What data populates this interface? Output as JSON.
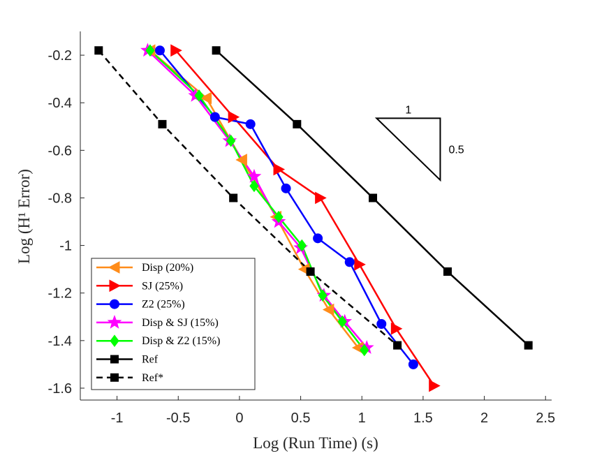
{
  "chart_data": {
    "type": "line",
    "xlabel": "Log (Run Time)  (s)",
    "ylabel": "Log (H¹ Error)",
    "xlim": [
      -1.3,
      2.55
    ],
    "ylim": [
      -1.65,
      -0.1
    ],
    "xticks": [
      -1,
      -0.5,
      0,
      0.5,
      1,
      1.5,
      2,
      2.5
    ],
    "xtick_labels": [
      "-1",
      "-0.5",
      "0",
      "0.5",
      "1",
      "1.5",
      "2",
      "2.5"
    ],
    "yticks": [
      -1.6,
      -1.4,
      -1.2,
      -1,
      -0.8,
      -0.6,
      -0.4,
      -0.2
    ],
    "ytick_labels": [
      "-1.6",
      "-1.4",
      "-1.2",
      "-1",
      "-0.8",
      "-0.6",
      "-0.4",
      "-0.2"
    ],
    "legend_location": "bottom-left",
    "series": [
      {
        "name": "Disp (20%)",
        "color": "#ff8c1a",
        "marker": "triangle-left",
        "dash": "solid",
        "x": [
          -0.73,
          -0.27,
          0.02,
          0.3,
          0.53,
          0.73,
          0.97
        ],
        "y": [
          -0.18,
          -0.38,
          -0.64,
          -0.88,
          -1.1,
          -1.27,
          -1.43
        ]
      },
      {
        "name": "SJ (25%)",
        "color": "#ff0000",
        "marker": "triangle-right",
        "dash": "solid",
        "x": [
          -0.52,
          -0.05,
          0.32,
          0.66,
          0.98,
          1.28,
          1.59
        ],
        "y": [
          -0.18,
          -0.46,
          -0.68,
          -0.8,
          -1.08,
          -1.35,
          -1.59
        ]
      },
      {
        "name": "Z2 (25%)",
        "color": "#0000ff",
        "marker": "circle",
        "dash": "solid",
        "x": [
          -0.65,
          -0.2,
          0.09,
          0.38,
          0.64,
          0.9,
          1.16,
          1.42
        ],
        "y": [
          -0.18,
          -0.46,
          -0.49,
          -0.76,
          -0.97,
          -1.07,
          -1.33,
          -1.5
        ]
      },
      {
        "name": "Disp & SJ (15%)",
        "color": "#ff00ff",
        "marker": "star",
        "dash": "solid",
        "x": [
          -0.75,
          -0.36,
          -0.08,
          0.12,
          0.32,
          0.5,
          0.69,
          0.86,
          1.04
        ],
        "y": [
          -0.18,
          -0.37,
          -0.56,
          -0.71,
          -0.9,
          -1.01,
          -1.21,
          -1.32,
          -1.43
        ]
      },
      {
        "name": "Disp & Z2 (15%)",
        "color": "#00ff00",
        "marker": "diamond",
        "dash": "solid",
        "x": [
          -0.73,
          -0.33,
          -0.07,
          0.12,
          0.32,
          0.51,
          0.68,
          0.84,
          1.02
        ],
        "y": [
          -0.18,
          -0.37,
          -0.56,
          -0.75,
          -0.88,
          -1.0,
          -1.21,
          -1.32,
          -1.44
        ]
      },
      {
        "name": "Ref",
        "color": "#000000",
        "marker": "square",
        "dash": "solid",
        "x": [
          -0.19,
          0.47,
          1.09,
          1.7,
          2.36
        ],
        "y": [
          -0.18,
          -0.49,
          -0.8,
          -1.11,
          -1.42
        ]
      },
      {
        "name": "Ref*",
        "color": "#000000",
        "marker": "square",
        "dash": "dashed",
        "x": [
          -1.15,
          -0.63,
          -0.05,
          0.58,
          1.29
        ],
        "y": [
          -0.18,
          -0.49,
          -0.8,
          -1.11,
          -1.42
        ]
      }
    ],
    "slope_triangle": {
      "run_label": "1",
      "rise_label": "0.5",
      "x": [
        1.12,
        1.64
      ],
      "y": [
        -0.465,
        -0.725
      ]
    }
  }
}
